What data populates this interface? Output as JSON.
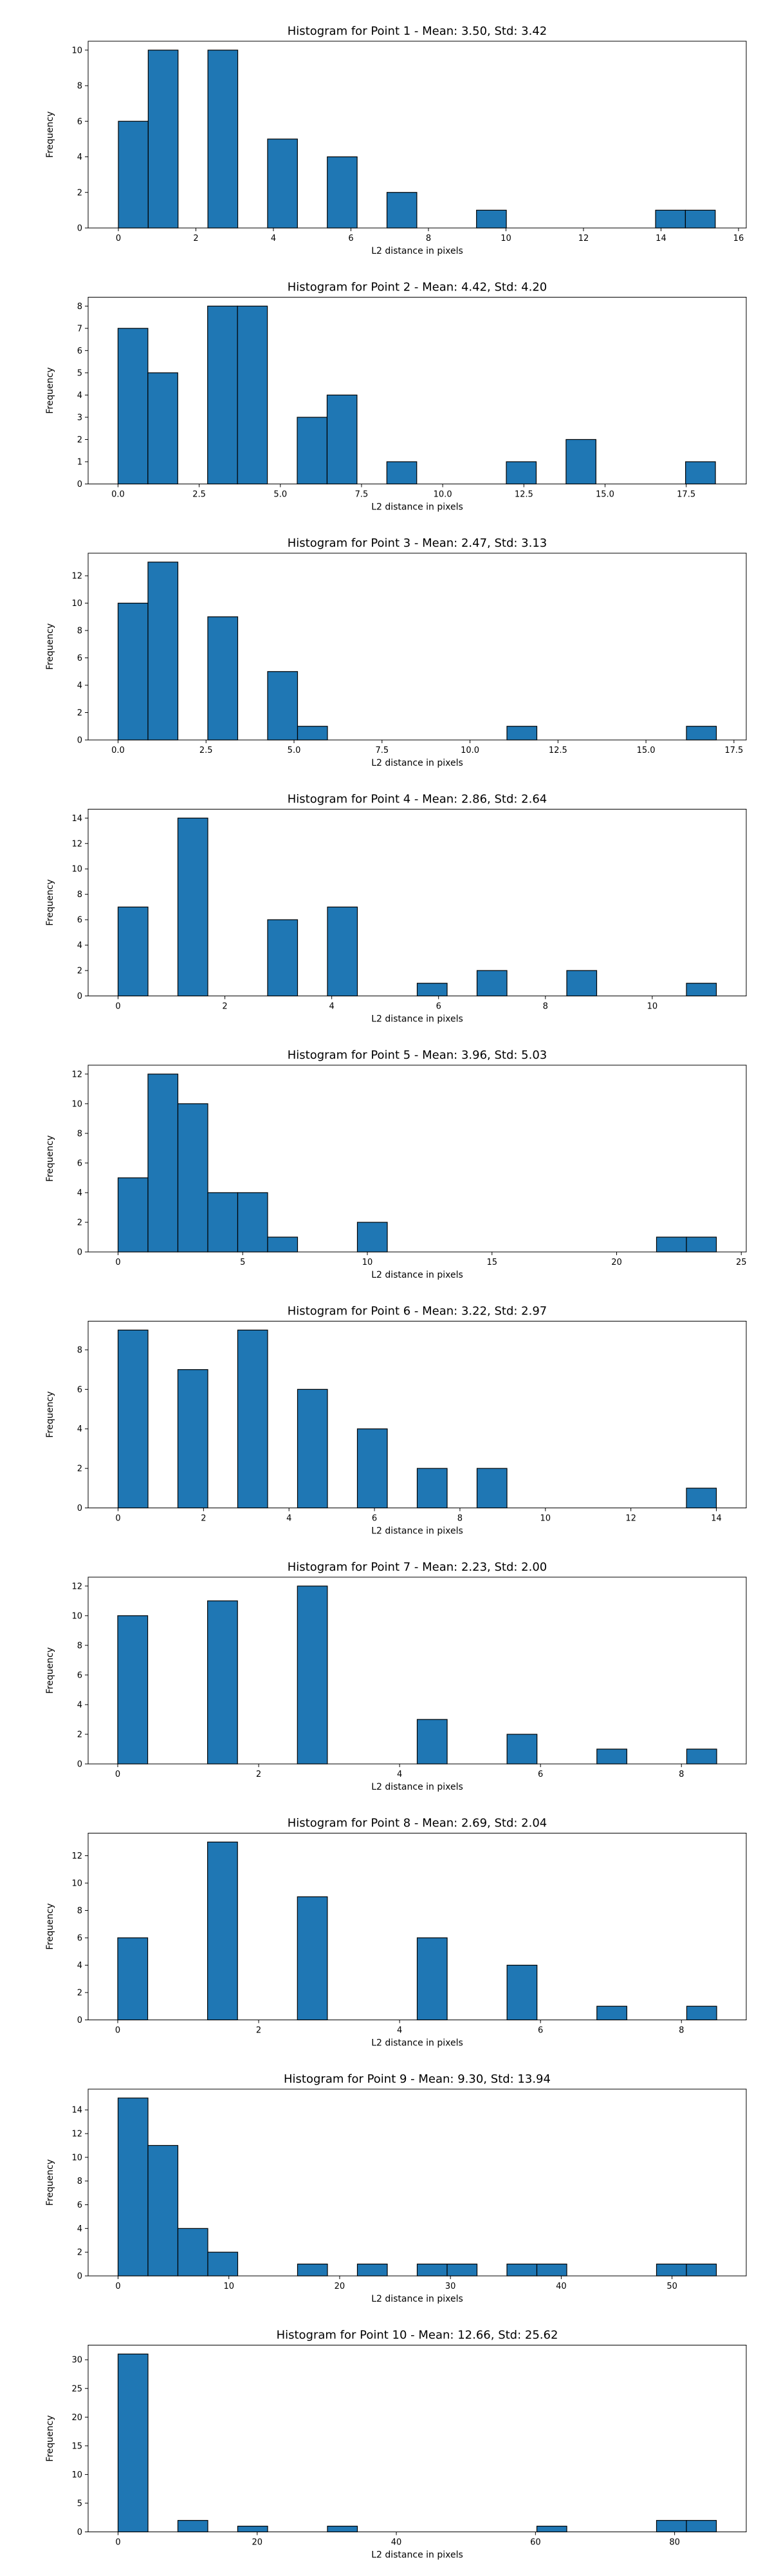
{
  "chart_data": [
    {
      "type": "bar",
      "title": "Histogram for Point 1 - Mean: 3.50, Std: 3.42",
      "xlabel": "L2 distance in pixels",
      "ylabel": "Frequency",
      "xlim": [
        -0.78,
        16.2
      ],
      "ylim": [
        0,
        10.5
      ],
      "xticks": [
        0,
        2,
        4,
        6,
        8,
        10,
        12,
        14,
        16
      ],
      "yticks": [
        0,
        2,
        4,
        6,
        8,
        10
      ],
      "bins": [
        [
          0,
          0.77,
          6
        ],
        [
          0.77,
          1.54,
          10
        ],
        [
          1.54,
          2.31,
          0
        ],
        [
          2.31,
          3.08,
          10
        ],
        [
          3.08,
          3.85,
          0
        ],
        [
          3.85,
          4.62,
          5
        ],
        [
          4.62,
          5.39,
          0
        ],
        [
          5.39,
          6.16,
          4
        ],
        [
          6.16,
          6.93,
          0
        ],
        [
          6.93,
          7.7,
          2
        ],
        [
          7.7,
          8.47,
          0
        ],
        [
          8.47,
          9.24,
          0
        ],
        [
          9.24,
          10.01,
          1
        ],
        [
          10.01,
          10.78,
          0
        ],
        [
          10.78,
          11.55,
          0
        ],
        [
          11.55,
          12.32,
          0
        ],
        [
          12.32,
          13.09,
          0
        ],
        [
          13.09,
          13.86,
          0
        ],
        [
          13.86,
          14.63,
          1
        ],
        [
          14.63,
          15.4,
          1
        ]
      ]
    },
    {
      "type": "bar",
      "title": "Histogram for Point 2 - Mean: 4.42, Std: 4.20",
      "xlabel": "L2 distance in pixels",
      "ylabel": "Frequency",
      "xlim": [
        -0.92,
        19.35
      ],
      "ylim": [
        0,
        8.4
      ],
      "xticks": [
        0.0,
        2.5,
        5.0,
        7.5,
        10.0,
        12.5,
        15.0,
        17.5
      ],
      "yticks": [
        0,
        1,
        2,
        3,
        4,
        5,
        6,
        7,
        8
      ],
      "bins": [
        [
          0,
          0.92,
          7
        ],
        [
          0.92,
          1.84,
          5
        ],
        [
          1.84,
          2.76,
          0
        ],
        [
          2.76,
          3.68,
          8
        ],
        [
          3.68,
          4.6,
          8
        ],
        [
          4.6,
          5.52,
          0
        ],
        [
          5.52,
          6.44,
          3
        ],
        [
          6.44,
          7.36,
          4
        ],
        [
          7.36,
          8.28,
          0
        ],
        [
          8.28,
          9.2,
          1
        ],
        [
          9.2,
          10.12,
          0
        ],
        [
          10.12,
          11.04,
          0
        ],
        [
          11.04,
          11.96,
          0
        ],
        [
          11.96,
          12.88,
          1
        ],
        [
          12.88,
          13.8,
          0
        ],
        [
          13.8,
          14.72,
          2
        ],
        [
          14.72,
          15.64,
          0
        ],
        [
          15.64,
          16.56,
          0
        ],
        [
          16.56,
          17.48,
          0
        ],
        [
          17.48,
          18.4,
          1
        ]
      ]
    },
    {
      "type": "bar",
      "title": "Histogram for Point 3 - Mean: 2.47, Std: 3.13",
      "xlabel": "L2 distance in pixels",
      "ylabel": "Frequency",
      "xlim": [
        -0.85,
        17.85
      ],
      "ylim": [
        0,
        13.65
      ],
      "xticks": [
        0.0,
        2.5,
        5.0,
        7.5,
        10.0,
        12.5,
        15.0,
        17.5
      ],
      "yticks": [
        0,
        2,
        4,
        6,
        8,
        10,
        12
      ],
      "bins": [
        [
          0,
          0.85,
          10
        ],
        [
          0.85,
          1.7,
          13
        ],
        [
          1.7,
          2.55,
          0
        ],
        [
          2.55,
          3.4,
          9
        ],
        [
          3.4,
          4.25,
          0
        ],
        [
          4.25,
          5.1,
          5
        ],
        [
          5.1,
          5.95,
          1
        ],
        [
          5.95,
          6.8,
          0
        ],
        [
          6.8,
          7.65,
          0
        ],
        [
          7.65,
          8.5,
          0
        ],
        [
          8.5,
          9.35,
          0
        ],
        [
          9.35,
          10.2,
          0
        ],
        [
          10.2,
          11.05,
          0
        ],
        [
          11.05,
          11.9,
          1
        ],
        [
          11.9,
          12.75,
          0
        ],
        [
          12.75,
          13.6,
          0
        ],
        [
          13.6,
          14.45,
          0
        ],
        [
          14.45,
          15.3,
          0
        ],
        [
          15.3,
          16.15,
          0
        ],
        [
          16.15,
          17.0,
          1
        ]
      ]
    },
    {
      "type": "bar",
      "title": "Histogram for Point 4 - Mean: 2.86, Std: 2.64",
      "xlabel": "L2 distance in pixels",
      "ylabel": "Frequency",
      "xlim": [
        -0.56,
        11.76
      ],
      "ylim": [
        0,
        14.7
      ],
      "xticks": [
        0,
        2,
        4,
        6,
        8,
        10
      ],
      "yticks": [
        0,
        2,
        4,
        6,
        8,
        10,
        12,
        14
      ],
      "bins": [
        [
          0,
          0.56,
          7
        ],
        [
          0.56,
          1.12,
          0
        ],
        [
          1.12,
          1.68,
          14
        ],
        [
          1.68,
          2.24,
          0
        ],
        [
          2.24,
          2.8,
          0
        ],
        [
          2.8,
          3.36,
          6
        ],
        [
          3.36,
          3.92,
          0
        ],
        [
          3.92,
          4.48,
          7
        ],
        [
          4.48,
          5.04,
          0
        ],
        [
          5.04,
          5.6,
          0
        ],
        [
          5.6,
          6.16,
          1
        ],
        [
          6.16,
          6.72,
          0
        ],
        [
          6.72,
          7.28,
          2
        ],
        [
          7.28,
          7.84,
          0
        ],
        [
          7.84,
          8.4,
          0
        ],
        [
          8.4,
          8.96,
          2
        ],
        [
          8.96,
          9.52,
          0
        ],
        [
          9.52,
          10.08,
          0
        ],
        [
          10.08,
          10.64,
          0
        ],
        [
          10.64,
          11.2,
          1
        ]
      ]
    },
    {
      "type": "bar",
      "title": "Histogram for Point 5 - Mean: 3.96, Std: 5.03",
      "xlabel": "L2 distance in pixels",
      "ylabel": "Frequency",
      "xlim": [
        -1.2,
        25.2
      ],
      "ylim": [
        0,
        12.6
      ],
      "xticks": [
        0,
        5,
        10,
        15,
        20,
        25
      ],
      "yticks": [
        0,
        2,
        4,
        6,
        8,
        10,
        12
      ],
      "bins": [
        [
          0,
          1.2,
          5
        ],
        [
          1.2,
          2.4,
          12
        ],
        [
          2.4,
          3.6,
          10
        ],
        [
          3.6,
          4.8,
          4
        ],
        [
          4.8,
          6.0,
          4
        ],
        [
          6.0,
          7.2,
          1
        ],
        [
          7.2,
          8.4,
          0
        ],
        [
          8.4,
          9.6,
          0
        ],
        [
          9.6,
          10.8,
          2
        ],
        [
          10.8,
          12.0,
          0
        ],
        [
          12.0,
          13.2,
          0
        ],
        [
          13.2,
          14.4,
          0
        ],
        [
          14.4,
          15.6,
          0
        ],
        [
          15.6,
          16.8,
          0
        ],
        [
          16.8,
          18.0,
          0
        ],
        [
          18.0,
          19.2,
          0
        ],
        [
          19.2,
          20.4,
          0
        ],
        [
          20.4,
          21.6,
          0
        ],
        [
          21.6,
          22.8,
          1
        ],
        [
          22.8,
          24.0,
          1
        ]
      ]
    },
    {
      "type": "bar",
      "title": "Histogram for Point 6 - Mean: 3.22, Std: 2.97",
      "xlabel": "L2 distance in pixels",
      "ylabel": "Frequency",
      "xlim": [
        -0.7,
        14.7
      ],
      "ylim": [
        0,
        9.45
      ],
      "xticks": [
        0,
        2,
        4,
        6,
        8,
        10,
        12,
        14
      ],
      "yticks": [
        0,
        2,
        4,
        6,
        8
      ],
      "bins": [
        [
          0,
          0.7,
          9
        ],
        [
          0.7,
          1.4,
          0
        ],
        [
          1.4,
          2.1,
          7
        ],
        [
          2.1,
          2.8,
          0
        ],
        [
          2.8,
          3.5,
          9
        ],
        [
          3.5,
          4.2,
          0
        ],
        [
          4.2,
          4.9,
          6
        ],
        [
          4.9,
          5.6,
          0
        ],
        [
          5.6,
          6.3,
          4
        ],
        [
          6.3,
          7.0,
          0
        ],
        [
          7.0,
          7.7,
          2
        ],
        [
          7.7,
          8.4,
          0
        ],
        [
          8.4,
          9.1,
          2
        ],
        [
          9.1,
          9.8,
          0
        ],
        [
          9.8,
          10.5,
          0
        ],
        [
          10.5,
          11.2,
          0
        ],
        [
          11.2,
          11.9,
          0
        ],
        [
          11.9,
          12.6,
          0
        ],
        [
          12.6,
          13.3,
          0
        ],
        [
          13.3,
          14.0,
          1
        ]
      ]
    },
    {
      "type": "bar",
      "title": "Histogram for Point 7 - Mean: 2.23, Std: 2.00",
      "xlabel": "L2 distance in pixels",
      "ylabel": "Frequency",
      "xlim": [
        -0.42,
        8.92
      ],
      "ylim": [
        0,
        12.6
      ],
      "xticks": [
        0,
        2,
        4,
        6,
        8
      ],
      "yticks": [
        0,
        2,
        4,
        6,
        8,
        10,
        12
      ],
      "bins": [
        [
          0,
          0.425,
          10
        ],
        [
          0.425,
          0.85,
          0
        ],
        [
          0.85,
          1.275,
          0
        ],
        [
          1.275,
          1.7,
          11
        ],
        [
          1.7,
          2.125,
          0
        ],
        [
          2.125,
          2.55,
          0
        ],
        [
          2.55,
          2.975,
          12
        ],
        [
          2.975,
          3.4,
          0
        ],
        [
          3.4,
          3.825,
          0
        ],
        [
          3.825,
          4.25,
          0
        ],
        [
          4.25,
          4.675,
          3
        ],
        [
          4.675,
          5.1,
          0
        ],
        [
          5.1,
          5.525,
          0
        ],
        [
          5.525,
          5.95,
          2
        ],
        [
          5.95,
          6.375,
          0
        ],
        [
          6.375,
          6.8,
          0
        ],
        [
          6.8,
          7.225,
          1
        ],
        [
          7.225,
          7.65,
          0
        ],
        [
          7.65,
          8.075,
          0
        ],
        [
          8.075,
          8.5,
          1
        ]
      ]
    },
    {
      "type": "bar",
      "title": "Histogram for Point 8 - Mean: 2.69, Std: 2.04",
      "xlabel": "L2 distance in pixels",
      "ylabel": "Frequency",
      "xlim": [
        -0.42,
        8.92
      ],
      "ylim": [
        0,
        13.65
      ],
      "xticks": [
        0,
        2,
        4,
        6,
        8
      ],
      "yticks": [
        0,
        2,
        4,
        6,
        8,
        10,
        12
      ],
      "bins": [
        [
          0,
          0.425,
          6
        ],
        [
          0.425,
          0.85,
          0
        ],
        [
          0.85,
          1.275,
          0
        ],
        [
          1.275,
          1.7,
          13
        ],
        [
          1.7,
          2.125,
          0
        ],
        [
          2.125,
          2.55,
          0
        ],
        [
          2.55,
          2.975,
          9
        ],
        [
          2.975,
          3.4,
          0
        ],
        [
          3.4,
          3.825,
          0
        ],
        [
          3.825,
          4.25,
          0
        ],
        [
          4.25,
          4.675,
          6
        ],
        [
          4.675,
          5.1,
          0
        ],
        [
          5.1,
          5.525,
          0
        ],
        [
          5.525,
          5.95,
          4
        ],
        [
          5.95,
          6.375,
          0
        ],
        [
          6.375,
          6.8,
          0
        ],
        [
          6.8,
          7.225,
          1
        ],
        [
          7.225,
          7.65,
          0
        ],
        [
          7.65,
          8.075,
          0
        ],
        [
          8.075,
          8.5,
          1
        ]
      ]
    },
    {
      "type": "bar",
      "title": "Histogram for Point 9 - Mean: 9.30, Std: 13.94",
      "xlabel": "L2 distance in pixels",
      "ylabel": "Frequency",
      "xlim": [
        -2.7,
        56.7
      ],
      "ylim": [
        0,
        15.75
      ],
      "xticks": [
        0,
        10,
        20,
        30,
        40,
        50
      ],
      "yticks": [
        0,
        2,
        4,
        6,
        8,
        10,
        12,
        14
      ],
      "bins": [
        [
          0,
          2.7,
          15
        ],
        [
          2.7,
          5.4,
          11
        ],
        [
          5.4,
          8.1,
          4
        ],
        [
          8.1,
          10.8,
          2
        ],
        [
          10.8,
          13.5,
          0
        ],
        [
          13.5,
          16.2,
          0
        ],
        [
          16.2,
          18.9,
          1
        ],
        [
          18.9,
          21.6,
          0
        ],
        [
          21.6,
          24.3,
          1
        ],
        [
          24.3,
          27.0,
          0
        ],
        [
          27.0,
          29.7,
          1
        ],
        [
          29.7,
          32.4,
          1
        ],
        [
          32.4,
          35.1,
          0
        ],
        [
          35.1,
          37.8,
          1
        ],
        [
          37.8,
          40.5,
          1
        ],
        [
          40.5,
          43.2,
          0
        ],
        [
          43.2,
          45.9,
          0
        ],
        [
          45.9,
          48.6,
          0
        ],
        [
          48.6,
          51.3,
          1
        ],
        [
          51.3,
          54.0,
          1
        ]
      ]
    },
    {
      "type": "bar",
      "title": "Histogram for Point 10 - Mean: 12.66, Std: 25.62",
      "xlabel": "L2 distance in pixels",
      "ylabel": "Frequency",
      "xlim": [
        -4.3,
        90.3
      ],
      "ylim": [
        0,
        32.55
      ],
      "xticks": [
        0,
        20,
        40,
        60,
        80
      ],
      "yticks": [
        0,
        5,
        10,
        15,
        20,
        25,
        30
      ],
      "bins": [
        [
          0,
          4.3,
          31
        ],
        [
          4.3,
          8.6,
          0
        ],
        [
          8.6,
          12.9,
          2
        ],
        [
          12.9,
          17.2,
          0
        ],
        [
          17.2,
          21.5,
          1
        ],
        [
          21.5,
          25.8,
          0
        ],
        [
          25.8,
          30.1,
          0
        ],
        [
          30.1,
          34.4,
          1
        ],
        [
          34.4,
          38.7,
          0
        ],
        [
          38.7,
          43.0,
          0
        ],
        [
          43.0,
          47.3,
          0
        ],
        [
          47.3,
          51.6,
          0
        ],
        [
          51.6,
          55.9,
          0
        ],
        [
          55.9,
          60.2,
          0
        ],
        [
          60.2,
          64.5,
          1
        ],
        [
          64.5,
          68.8,
          0
        ],
        [
          68.8,
          73.1,
          0
        ],
        [
          73.1,
          77.4,
          0
        ],
        [
          77.4,
          81.7,
          2
        ],
        [
          81.7,
          86.0,
          2
        ]
      ]
    }
  ],
  "style": {
    "bar_fill": "#1f77b4",
    "bar_edge": "#000000",
    "background": "#ffffff"
  }
}
